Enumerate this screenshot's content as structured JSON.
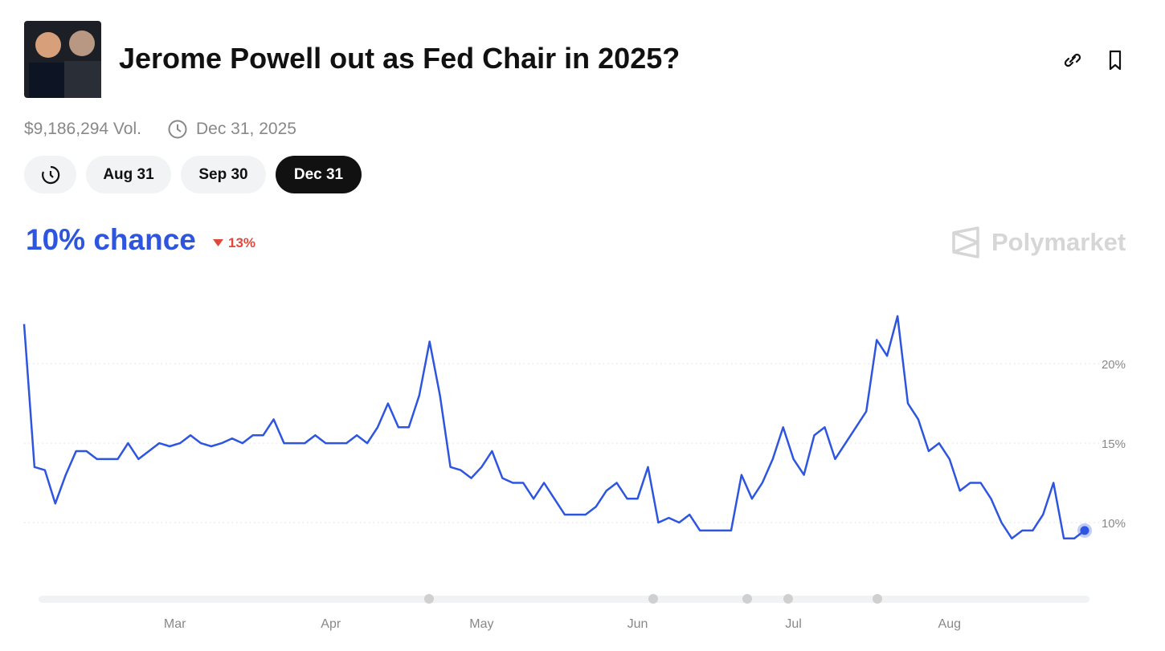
{
  "header": {
    "title": "Jerome Powell out as Fed Chair in 2025?",
    "volume": "$9,186,294 Vol.",
    "end_date": "Dec 31, 2025"
  },
  "tabs": [
    "Aug 31",
    "Sep 30",
    "Dec 31"
  ],
  "summary": {
    "chance": "10% chance",
    "change": "13%",
    "brand": "Polymarket"
  },
  "chart_data": {
    "type": "line",
    "color": "#2d55e0",
    "values": [
      22.5,
      13.5,
      13.3,
      11.2,
      13,
      14.5,
      14.5,
      14,
      14,
      14,
      15,
      14,
      14.5,
      15,
      14.8,
      15,
      15.5,
      15,
      14.8,
      15,
      15.3,
      15,
      15.5,
      15.5,
      16.5,
      15,
      15,
      15,
      15.5,
      15,
      15,
      15,
      15.5,
      15,
      16,
      17.5,
      16,
      16,
      18,
      21.4,
      18,
      13.5,
      13.3,
      12.8,
      13.5,
      14.5,
      12.8,
      12.5,
      12.5,
      11.5,
      12.5,
      11.5,
      10.5,
      10.5,
      10.5,
      11,
      12,
      12.5,
      11.5,
      11.5,
      13.5,
      10,
      10.3,
      10,
      10.5,
      9.5,
      9.5,
      9.5,
      9.5,
      13,
      11.5,
      12.5,
      14,
      16,
      14,
      13,
      15.5,
      16,
      14,
      15,
      16,
      17,
      21.5,
      20.5,
      23,
      17.5,
      16.5,
      14.5,
      15,
      14,
      12,
      12.5,
      12.5,
      11.5,
      10,
      9,
      9.5,
      9.5,
      10.5,
      12.5,
      9,
      9,
      9.5
    ],
    "ylim": [
      5.5,
      23.7
    ],
    "yticks": [
      {
        "value": 10,
        "label": "10%"
      },
      {
        "value": 15,
        "label": "15%"
      },
      {
        "value": 20,
        "label": "20%"
      }
    ],
    "xticks": [
      {
        "value": 14.5,
        "label": "Mar"
      },
      {
        "value": 29.5,
        "label": "Apr"
      },
      {
        "value": 44,
        "label": "May"
      },
      {
        "value": 59,
        "label": "Jun"
      },
      {
        "value": 74,
        "label": "Jul"
      },
      {
        "value": 89,
        "label": "Aug"
      }
    ],
    "grid": true
  }
}
